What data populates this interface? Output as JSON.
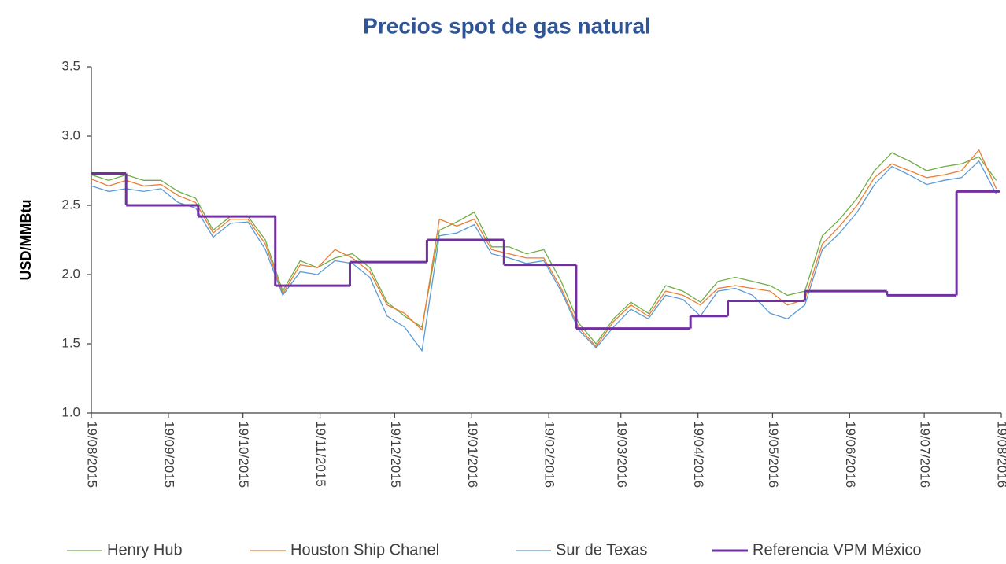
{
  "chart_data": {
    "type": "line",
    "title": "Precios spot de gas natural",
    "y_label": "USD/MMBtu",
    "x": [
      "2015-08-19",
      "2015-08-26",
      "2015-09-02",
      "2015-09-09",
      "2015-09-16",
      "2015-09-23",
      "2015-09-30",
      "2015-10-07",
      "2015-10-14",
      "2015-10-21",
      "2015-10-28",
      "2015-11-04",
      "2015-11-11",
      "2015-11-18",
      "2015-11-25",
      "2015-12-02",
      "2015-12-09",
      "2015-12-16",
      "2015-12-23",
      "2015-12-30",
      "2016-01-06",
      "2016-01-13",
      "2016-01-20",
      "2016-01-27",
      "2016-02-03",
      "2016-02-10",
      "2016-02-17",
      "2016-02-24",
      "2016-03-02",
      "2016-03-09",
      "2016-03-16",
      "2016-03-23",
      "2016-03-30",
      "2016-04-06",
      "2016-04-13",
      "2016-04-20",
      "2016-04-27",
      "2016-05-04",
      "2016-05-11",
      "2016-05-18",
      "2016-05-25",
      "2016-06-01",
      "2016-06-08",
      "2016-06-15",
      "2016-06-22",
      "2016-06-29",
      "2016-07-06",
      "2016-07-13",
      "2016-07-20",
      "2016-07-27",
      "2016-08-03",
      "2016-08-10",
      "2016-08-17"
    ],
    "series": [
      {
        "name": "Henry Hub",
        "color": "#70ad47",
        "values": [
          2.72,
          2.68,
          2.72,
          2.68,
          2.68,
          2.6,
          2.55,
          2.32,
          2.42,
          2.42,
          2.25,
          1.88,
          2.1,
          2.05,
          2.12,
          2.15,
          2.05,
          1.8,
          1.7,
          1.62,
          2.32,
          2.38,
          2.45,
          2.2,
          2.2,
          2.15,
          2.18,
          1.95,
          1.65,
          1.5,
          1.68,
          1.8,
          1.72,
          1.92,
          1.88,
          1.8,
          1.95,
          1.98,
          1.95,
          1.92,
          1.85,
          1.88,
          2.28,
          2.4,
          2.55,
          2.75,
          2.88,
          2.82,
          2.75,
          2.78,
          2.8,
          2.85,
          2.68
        ]
      },
      {
        "name": "Houston Ship Chanel",
        "color": "#ed7d31",
        "values": [
          2.69,
          2.64,
          2.68,
          2.64,
          2.65,
          2.57,
          2.52,
          2.3,
          2.4,
          2.4,
          2.22,
          1.86,
          2.07,
          2.05,
          2.18,
          2.12,
          2.02,
          1.78,
          1.72,
          1.6,
          2.4,
          2.35,
          2.4,
          2.18,
          2.15,
          2.12,
          2.12,
          1.9,
          1.62,
          1.48,
          1.66,
          1.78,
          1.7,
          1.88,
          1.85,
          1.78,
          1.9,
          1.92,
          1.9,
          1.88,
          1.78,
          1.82,
          2.22,
          2.35,
          2.5,
          2.7,
          2.8,
          2.75,
          2.7,
          2.72,
          2.75,
          2.9,
          2.62
        ]
      },
      {
        "name": "Sur de Texas",
        "color": "#5b9bd5",
        "values": [
          2.64,
          2.6,
          2.62,
          2.6,
          2.62,
          2.52,
          2.48,
          2.27,
          2.37,
          2.38,
          2.18,
          1.85,
          2.02,
          2.0,
          2.1,
          2.08,
          1.98,
          1.7,
          1.62,
          1.45,
          2.28,
          2.3,
          2.36,
          2.15,
          2.12,
          2.08,
          2.1,
          1.88,
          1.6,
          1.47,
          1.62,
          1.75,
          1.68,
          1.85,
          1.82,
          1.7,
          1.88,
          1.9,
          1.85,
          1.72,
          1.68,
          1.78,
          2.18,
          2.3,
          2.45,
          2.65,
          2.78,
          2.72,
          2.65,
          2.68,
          2.7,
          2.82,
          2.58
        ]
      },
      {
        "name": "Referencia VPM México",
        "color": "#7030a0",
        "step": true,
        "x": [
          "2015-08-19",
          "2015-09-02",
          "2015-10-01",
          "2015-11-01",
          "2015-12-01",
          "2016-01-01",
          "2016-02-01",
          "2016-03-01",
          "2016-04-16",
          "2016-05-01",
          "2016-06-01",
          "2016-07-04",
          "2016-08-01",
          "2016-08-18"
        ],
        "values": [
          2.73,
          2.5,
          2.42,
          1.92,
          2.09,
          2.25,
          2.07,
          1.61,
          1.7,
          1.81,
          1.88,
          1.85,
          2.6,
          2.6
        ]
      }
    ],
    "xlim": [
      "2015-08-19",
      "2016-08-19"
    ],
    "xticks": [
      {
        "value": "2015-08-19",
        "label": "19/08/2015"
      },
      {
        "value": "2015-09-19",
        "label": "19/09/2015"
      },
      {
        "value": "2015-10-19",
        "label": "19/10/2015"
      },
      {
        "value": "2015-11-19",
        "label": "19/11/2015"
      },
      {
        "value": "2015-12-19",
        "label": "19/12/2015"
      },
      {
        "value": "2016-01-19",
        "label": "19/01/2016"
      },
      {
        "value": "2016-02-19",
        "label": "19/02/2016"
      },
      {
        "value": "2016-03-19",
        "label": "19/03/2016"
      },
      {
        "value": "2016-04-19",
        "label": "19/04/2016"
      },
      {
        "value": "2016-05-19",
        "label": "19/05/2016"
      },
      {
        "value": "2016-06-19",
        "label": "19/06/2016"
      },
      {
        "value": "2016-07-19",
        "label": "19/07/2016"
      },
      {
        "value": "2016-08-19",
        "label": "19/08/2016"
      }
    ],
    "ylim": [
      1,
      3.5
    ],
    "yticks": [
      {
        "value": 1,
        "label": "1.0"
      },
      1.5,
      {
        "value": 2,
        "label": "2.0"
      },
      2.5,
      {
        "value": 3,
        "label": "3.0"
      },
      3.5
    ],
    "grid": false,
    "legend": "bottom"
  }
}
